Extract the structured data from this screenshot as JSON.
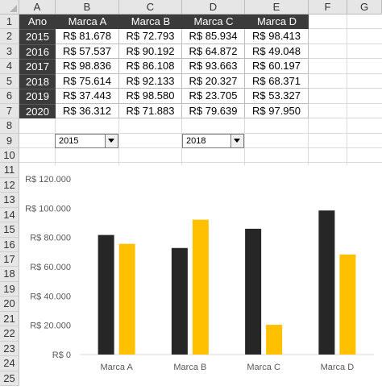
{
  "columns": [
    "A",
    "B",
    "C",
    "D",
    "E",
    "F",
    "G"
  ],
  "rows": [
    "1",
    "2",
    "3",
    "4",
    "5",
    "6",
    "7",
    "8",
    "9",
    "10",
    "11",
    "12",
    "13",
    "14",
    "15",
    "16",
    "17",
    "18",
    "19",
    "20",
    "21",
    "22",
    "23",
    "24",
    "25"
  ],
  "table": {
    "headers": [
      "Ano",
      "Marca A",
      "Marca B",
      "Marca C",
      "Marca D"
    ],
    "rows": [
      {
        "year": "2015",
        "values": [
          "R$ 81.678",
          "R$ 72.793",
          "R$ 85.934",
          "R$ 98.413"
        ]
      },
      {
        "year": "2016",
        "values": [
          "R$ 57.537",
          "R$ 90.192",
          "R$ 64.872",
          "R$ 49.048"
        ]
      },
      {
        "year": "2017",
        "values": [
          "R$ 98.836",
          "R$ 86.108",
          "R$ 93.663",
          "R$ 60.197"
        ]
      },
      {
        "year": "2018",
        "values": [
          "R$ 75.614",
          "R$ 92.133",
          "R$ 20.327",
          "R$ 68.371"
        ]
      },
      {
        "year": "2019",
        "values": [
          "R$ 37.443",
          "R$ 98.580",
          "R$ 23.705",
          "R$ 53.327"
        ]
      },
      {
        "year": "2020",
        "values": [
          "R$ 36.312",
          "R$ 71.883",
          "R$ 79.639",
          "R$ 97.950"
        ]
      }
    ]
  },
  "dropdowns": {
    "left": {
      "value": "2015"
    },
    "right": {
      "value": "2018"
    }
  },
  "chart_data": {
    "type": "bar",
    "categories": [
      "Marca A",
      "Marca B",
      "Marca C",
      "Marca D"
    ],
    "series": [
      {
        "values": [
          81678,
          72793,
          85934,
          98413
        ],
        "color": "#262626"
      },
      {
        "values": [
          75614,
          92133,
          20327,
          68371
        ],
        "color": "#ffc000"
      }
    ],
    "ylim": [
      0,
      120000
    ],
    "yticks": [
      0,
      20000,
      40000,
      60000,
      80000,
      100000,
      120000
    ],
    "ytick_labels": [
      "R$ 0",
      "R$ 20.000",
      "R$ 40.000",
      "R$ 60.000",
      "R$ 80.000",
      "R$ 100.000",
      "R$ 120.000"
    ],
    "grid": false,
    "legend": "none"
  }
}
